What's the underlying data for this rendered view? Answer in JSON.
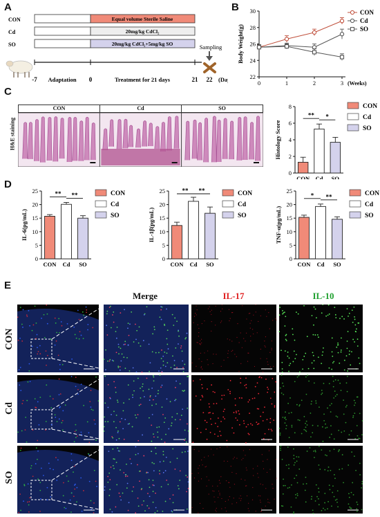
{
  "panels": {
    "A": "A",
    "B": "B",
    "C": "C",
    "D": "D",
    "E": "E"
  },
  "panel_a": {
    "rows": [
      {
        "group": "CON",
        "treatment": "Equal volume Sterile Saline",
        "color": "#f08a78"
      },
      {
        "group": "Cd",
        "treatment": "20mg/kg CdCl₂",
        "color": "#eeeeee"
      },
      {
        "group": "SO",
        "treatment": "20mg/kg CdCl₂+5mg/kg SO",
        "color": "#d4d2ec"
      }
    ],
    "sampling": "Sampling",
    "ticks": [
      "-7",
      "0",
      "21",
      "22"
    ],
    "days_unit": "(Days)",
    "phase_adaptation": "Adaptation",
    "phase_treatment": "Treatment for 21 days"
  },
  "chart_data": [
    {
      "id": "B",
      "type": "line",
      "ylabel": "Body Weight(g)",
      "xlabel": "(Weeks)",
      "x": [
        0,
        1,
        2,
        3
      ],
      "ylim": [
        22,
        30
      ],
      "yticks": [
        22,
        24,
        26,
        28,
        30
      ],
      "series": [
        {
          "name": "CON",
          "values": [
            25.6,
            26.6,
            27.4,
            28.8
          ],
          "errors": [
            0.3,
            0.4,
            0.4,
            0.4
          ],
          "color": "#c0503c",
          "marker": "circle-filled"
        },
        {
          "name": "Cd",
          "values": [
            25.6,
            25.8,
            25.6,
            27.2
          ],
          "errors": [
            0.3,
            0.3,
            0.4,
            0.6
          ],
          "color": "#555555",
          "marker": "circle-open"
        },
        {
          "name": "SO",
          "values": [
            25.6,
            25.7,
            25.0,
            24.4
          ],
          "errors": [
            0.3,
            0.3,
            0.4,
            0.4
          ],
          "color": "#555555",
          "marker": "square-open"
        }
      ],
      "legend": "top-right"
    },
    {
      "id": "C",
      "type": "bar",
      "ylabel": "Histology Score",
      "categories": [
        "CON",
        "Cd",
        "SO"
      ],
      "values": [
        1.3,
        5.3,
        3.7
      ],
      "errors": [
        0.6,
        0.6,
        0.6
      ],
      "colors": [
        "#f08a78",
        "#ffffff",
        "#d4d2ec"
      ],
      "ylim": [
        0,
        8
      ],
      "yticks": [
        0,
        2,
        4,
        6,
        8
      ],
      "significance": [
        {
          "from": 0,
          "to": 1,
          "label": "**"
        },
        {
          "from": 1,
          "to": 2,
          "label": "*"
        }
      ],
      "legend": "right"
    },
    {
      "id": "D1",
      "type": "bar",
      "ylabel": "IL-6(pg/mL)",
      "categories": [
        "CON",
        "Cd",
        "SO"
      ],
      "values": [
        15.7,
        20.1,
        15.0
      ],
      "errors": [
        0.6,
        0.7,
        0.9
      ],
      "colors": [
        "#f08a78",
        "#ffffff",
        "#d4d2ec"
      ],
      "ylim": [
        0,
        25
      ],
      "yticks": [
        0,
        5,
        10,
        15,
        20,
        25
      ],
      "significance": [
        {
          "from": 0,
          "to": 1,
          "label": "**"
        },
        {
          "from": 1,
          "to": 2,
          "label": "**"
        }
      ],
      "legend": "right"
    },
    {
      "id": "D2",
      "type": "bar",
      "ylabel": "IL-1β(pg/mL)",
      "categories": [
        "CON",
        "Cd",
        "SO"
      ],
      "values": [
        12.3,
        21.2,
        16.8
      ],
      "errors": [
        1.2,
        1.5,
        2.3
      ],
      "colors": [
        "#f08a78",
        "#ffffff",
        "#d4d2ec"
      ],
      "ylim": [
        0,
        25
      ],
      "yticks": [
        0,
        5,
        10,
        15,
        20,
        25
      ],
      "significance": [
        {
          "from": 0,
          "to": 1,
          "label": "**"
        },
        {
          "from": 1,
          "to": 2,
          "label": "**"
        }
      ],
      "legend": "right"
    },
    {
      "id": "D3",
      "type": "bar",
      "ylabel": "TNF-α(pg/mL)",
      "categories": [
        "CON",
        "Cd",
        "SO"
      ],
      "values": [
        15.3,
        19.3,
        14.6
      ],
      "errors": [
        0.8,
        0.9,
        0.9
      ],
      "colors": [
        "#f08a78",
        "#ffffff",
        "#d4d2ec"
      ],
      "ylim": [
        0,
        25
      ],
      "yticks": [
        0,
        5,
        10,
        15,
        20,
        25
      ],
      "significance": [
        {
          "from": 0,
          "to": 1,
          "label": "*"
        },
        {
          "from": 1,
          "to": 2,
          "label": "**"
        }
      ],
      "legend": "right"
    }
  ],
  "panel_c": {
    "stain_label": "H&E staining",
    "headers": [
      "CON",
      "Cd",
      "SO"
    ]
  },
  "panel_e": {
    "col_titles": [
      "Merge",
      "IL-17",
      "IL-10"
    ],
    "title_colors": [
      "#111111",
      "#e02020",
      "#20a030"
    ],
    "rows": [
      "CON",
      "Cd",
      "SO"
    ]
  }
}
